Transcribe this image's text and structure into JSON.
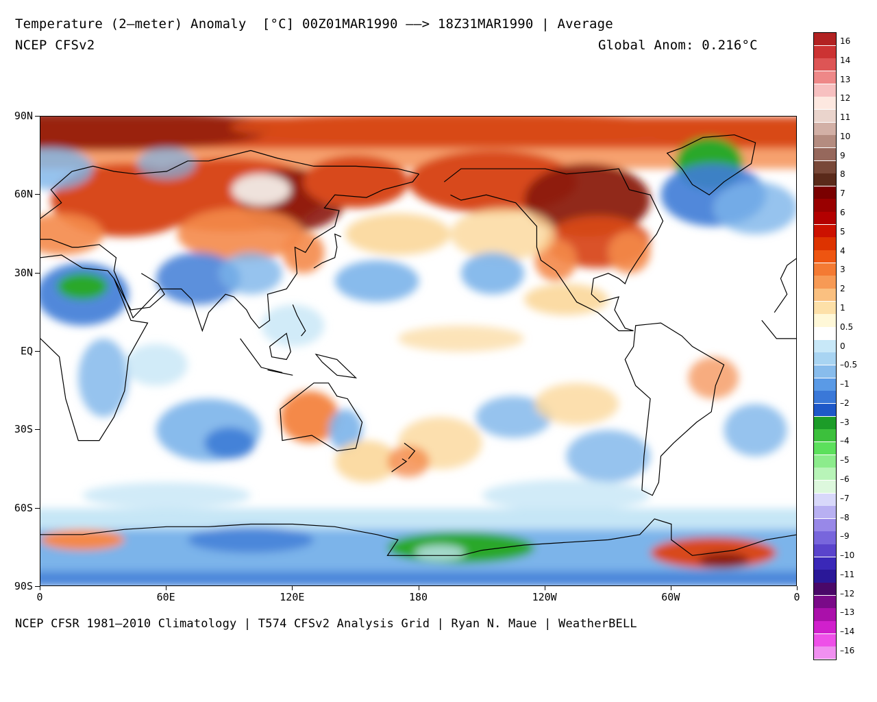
{
  "header": {
    "title": "Temperature (2–meter) Anomaly  [°C] 00Z01MAR1990 ––> 18Z31MAR1990 | Average",
    "model": "NCEP CFSv2",
    "global_anom": "Global Anom: 0.216°C"
  },
  "footer": "NCEP CFSR 1981–2010 Climatology | T574 CFSv2 Analysis Grid | Ryan N. Maue | WeatherBELL",
  "axes": {
    "lat_labels": [
      "90N",
      "60N",
      "30N",
      "EQ",
      "30S",
      "60S",
      "90S"
    ],
    "lon_labels": [
      "0",
      "60E",
      "120E",
      "180",
      "120W",
      "60W",
      "0"
    ]
  },
  "colorbar": {
    "labels": [
      "16",
      "14",
      "13",
      "12",
      "11",
      "10",
      "9",
      "8",
      "7",
      "6",
      "5",
      "4",
      "3",
      "2",
      "1",
      "0.5",
      "0",
      "–0.5",
      "–1",
      "–2",
      "–3",
      "–4",
      "–5",
      "–6",
      "–7",
      "–8",
      "–9",
      "–10",
      "–11",
      "–12",
      "–13",
      "–14",
      "–16"
    ],
    "colors": [
      "#b22222",
      "#cc3333",
      "#dd5555",
      "#ee8888",
      "#f7c0c0",
      "#fde8e0",
      "#ead4cc",
      "#d2b0a6",
      "#b48c80",
      "#96685c",
      "#784838",
      "#5a2a1a",
      "#7a0000",
      "#990000",
      "#b30000",
      "#cc1100",
      "#dd3300",
      "#ee5511",
      "#f47a33",
      "#f79a55",
      "#fac080",
      "#fde0a8",
      "#fff8d8",
      "#ffffff",
      "#c8e8f8",
      "#a8d4f2",
      "#88bcec",
      "#5a9ae6",
      "#3a78d8",
      "#1e58c8",
      "#1c9c28",
      "#3cc03c",
      "#5ce05c",
      "#8cec8c",
      "#b8f4b8",
      "#ddf8dd",
      "#d8d8fa",
      "#b8b0f2",
      "#9888e8",
      "#7866dc",
      "#5a44cc",
      "#3a28b8",
      "#2a1898",
      "#4a0868",
      "#7a0a88",
      "#aa10aa",
      "#d020cc",
      "#ee50e8",
      "#f090f0"
    ]
  },
  "map": {
    "projection": "equirectangular, 0° to 360° longitude, 90N to 90S",
    "shading_colors": {
      "warm_strong": "#8b1a08",
      "warm": "#d84a1a",
      "warm_mid": "#f4894a",
      "warm_light": "#fbd79a",
      "neutral": "#ffffff",
      "cool_light": "#c6e6f6",
      "cool": "#7cb4ea",
      "cool_strong": "#3e7cd6",
      "green": "#2aa82a",
      "brown_white": "#efe2dc"
    }
  }
}
